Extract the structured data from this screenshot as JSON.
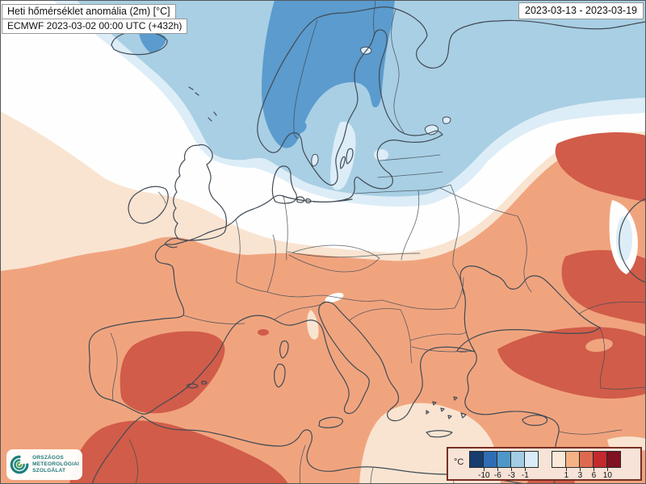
{
  "header": {
    "title": "Heti hőmérséklet anomália (2m) [°C]",
    "model_line": "ECMWF 2023-03-02 00:00 UTC (+432h)",
    "date_range": "2023-03-13 - 2023-03-19"
  },
  "legend": {
    "unit_label": "°C",
    "cold_ticks": [
      "-10",
      "-6",
      "-3",
      "-1"
    ],
    "warm_ticks": [
      "1",
      "3",
      "6",
      "10"
    ],
    "cold_colors": [
      "#163d6e",
      "#2e6db4",
      "#4f97c9",
      "#a3cde3",
      "#d9ecf7"
    ],
    "warm_colors": [
      "#fae9d8",
      "#f4b285",
      "#dd6a50",
      "#c32a2e",
      "#7f1322"
    ],
    "box_bg": "#f7e3d7",
    "box_border": "#7a2e24"
  },
  "logo": {
    "lines": [
      "ORSZÁGOS",
      "METEOROLÓGIAI",
      "SZOLGÁLAT"
    ],
    "color": "#217a7a",
    "icon_colors": [
      "#1d7f7f",
      "#2d8f83",
      "#5aa24c"
    ]
  },
  "map": {
    "description": "Weekly 2m temperature anomaly over Europe",
    "zone_colors": {
      "neutral": "#fefefe",
      "cold_weak": "#dcedf7",
      "cold_mild": "#a9cfe4",
      "cold_strong": "#5b9bce",
      "warm_weak": "#f9e4d1",
      "warm_mild": "#f0a47e",
      "warm_strong": "#d15c49"
    },
    "coast_color": "#414b55",
    "frame_color": "#54575c"
  }
}
